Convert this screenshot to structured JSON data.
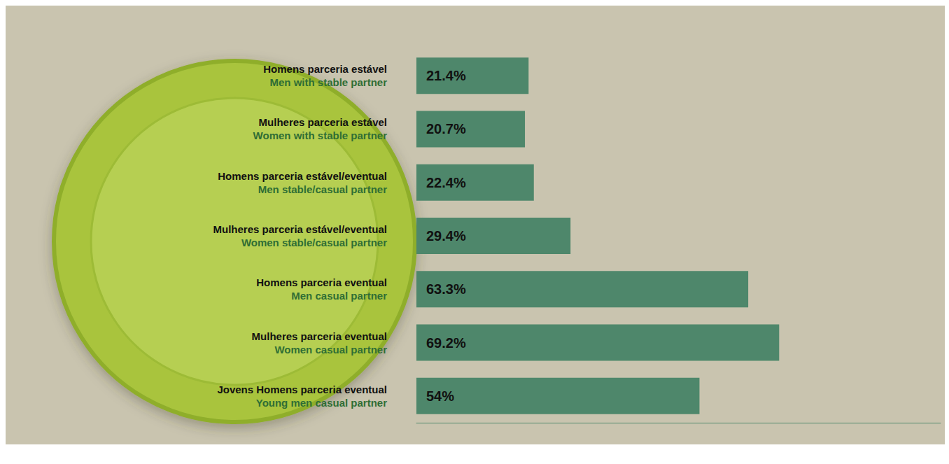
{
  "chart_data": {
    "type": "bar",
    "orientation": "horizontal",
    "categories": [
      "Homens parceria estável",
      "Mulheres parceria estável",
      "Homens parceria estável/eventual",
      "Mulheres parceria estável/eventual",
      "Homens parceria eventual",
      "Mulheres parceria eventual",
      "Jovens Homens parceria eventual"
    ],
    "categories_en": [
      "Men with stable partner",
      "Women with stable partner",
      "Men stable/casual partner",
      "Women stable/casual partner",
      "Men casual partner",
      "Women casual partner",
      "Young men casual partner"
    ],
    "values": [
      21.4,
      20.7,
      22.4,
      29.4,
      63.3,
      69.2,
      54
    ],
    "value_labels": [
      "21.4%",
      "20.7%",
      "22.4%",
      "29.4%",
      "63.3%",
      "69.2%",
      "54%"
    ],
    "color": "#4e876b",
    "xlim": [
      0,
      100
    ],
    "data_labels": true,
    "tick_labels": "y",
    "grid": false
  }
}
